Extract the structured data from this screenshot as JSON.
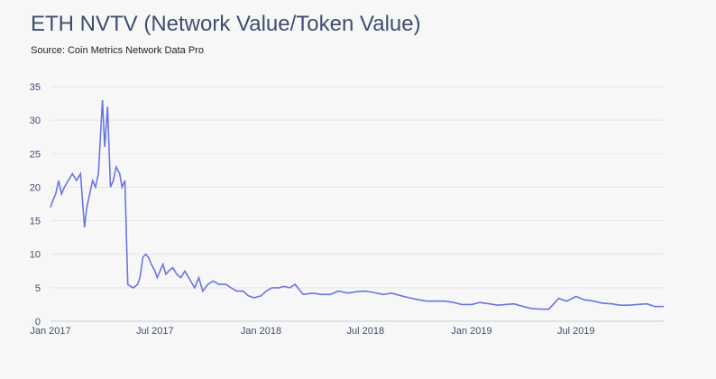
{
  "chart_data": {
    "type": "line",
    "title": "ETH NVTV (Network Value/Token Value)",
    "subtitle": "Source: Coin Metrics Network Data Pro",
    "xlabel": "",
    "ylabel": "",
    "ylim": [
      0,
      35
    ],
    "yticks": [
      "0",
      "5",
      "10",
      "15",
      "20",
      "25",
      "30",
      "35"
    ],
    "xticks": [
      "Jan 2017",
      "Jul 2017",
      "Jan 2018",
      "Jul 2018",
      "Jan 2019",
      "Jul 2019"
    ],
    "xlim": [
      "2017-01-01",
      "2019-11-30"
    ],
    "grid": true,
    "line_color": "#6b76e0",
    "series": [
      {
        "x": [
          "2017-01-01",
          "2017-01-05",
          "2017-01-10",
          "2017-01-15",
          "2017-01-20",
          "2017-01-25",
          "2017-02-01",
          "2017-02-08",
          "2017-02-15",
          "2017-02-22",
          "2017-03-01",
          "2017-03-05",
          "2017-03-10",
          "2017-03-15",
          "2017-03-20",
          "2017-03-25",
          "2017-04-01",
          "2017-04-05",
          "2017-04-10",
          "2017-04-15",
          "2017-04-20",
          "2017-04-25",
          "2017-05-01",
          "2017-05-05",
          "2017-05-10",
          "2017-05-15",
          "2017-05-20",
          "2017-05-25",
          "2017-06-01",
          "2017-06-05",
          "2017-06-10",
          "2017-06-15",
          "2017-06-20",
          "2017-06-25",
          "2017-07-01",
          "2017-07-05",
          "2017-07-10",
          "2017-07-15",
          "2017-07-20",
          "2017-07-25",
          "2017-08-01",
          "2017-08-08",
          "2017-08-15",
          "2017-08-22",
          "2017-09-01",
          "2017-09-08",
          "2017-09-15",
          "2017-09-22",
          "2017-10-01",
          "2017-10-10",
          "2017-10-20",
          "2017-11-01",
          "2017-11-10",
          "2017-11-20",
          "2017-12-01",
          "2017-12-10",
          "2017-12-20",
          "2018-01-01",
          "2018-01-10",
          "2018-01-20",
          "2018-02-01",
          "2018-02-10",
          "2018-02-20",
          "2018-03-01",
          "2018-03-15",
          "2018-04-01",
          "2018-04-15",
          "2018-05-01",
          "2018-05-15",
          "2018-06-01",
          "2018-06-15",
          "2018-07-01",
          "2018-07-15",
          "2018-08-01",
          "2018-08-15",
          "2018-09-01",
          "2018-09-15",
          "2018-10-01",
          "2018-10-15",
          "2018-11-01",
          "2018-11-15",
          "2018-12-01",
          "2018-12-15",
          "2019-01-01",
          "2019-01-15",
          "2019-02-01",
          "2019-02-15",
          "2019-03-01",
          "2019-03-15",
          "2019-04-01",
          "2019-04-15",
          "2019-05-01",
          "2019-05-15",
          "2019-06-01",
          "2019-06-15",
          "2019-07-01",
          "2019-07-15",
          "2019-08-01",
          "2019-08-15",
          "2019-09-01",
          "2019-09-15",
          "2019-10-01",
          "2019-10-15",
          "2019-11-01",
          "2019-11-15",
          "2019-11-30"
        ],
        "values": [
          17,
          18,
          19,
          21,
          19,
          20,
          21,
          22,
          21,
          22,
          14,
          17,
          19,
          21,
          20,
          22,
          33,
          26,
          32,
          20,
          21,
          23,
          22,
          20,
          21,
          5.5,
          5.2,
          5.0,
          5.5,
          6.5,
          9.5,
          10.0,
          9.5,
          8.5,
          7.5,
          6.5,
          7.5,
          8.5,
          7.0,
          7.5,
          8.0,
          7.0,
          6.5,
          7.5,
          6.0,
          5.0,
          6.5,
          4.5,
          5.5,
          6.0,
          5.5,
          5.5,
          5.0,
          4.5,
          4.5,
          3.8,
          3.5,
          3.8,
          4.5,
          5.0,
          5.0,
          5.2,
          5.0,
          5.5,
          4.0,
          4.2,
          4.0,
          4.0,
          4.5,
          4.2,
          4.4,
          4.5,
          4.3,
          4.0,
          4.2,
          3.8,
          3.5,
          3.2,
          3.0,
          3.0,
          3.0,
          2.8,
          2.5,
          2.5,
          2.8,
          2.6,
          2.4,
          2.5,
          2.6,
          2.2,
          1.9,
          1.8,
          1.8,
          3.4,
          3.0,
          3.7,
          3.2,
          3.0,
          2.7,
          2.6,
          2.4,
          2.4,
          2.5,
          2.6,
          2.2,
          2.2
        ]
      }
    ]
  }
}
